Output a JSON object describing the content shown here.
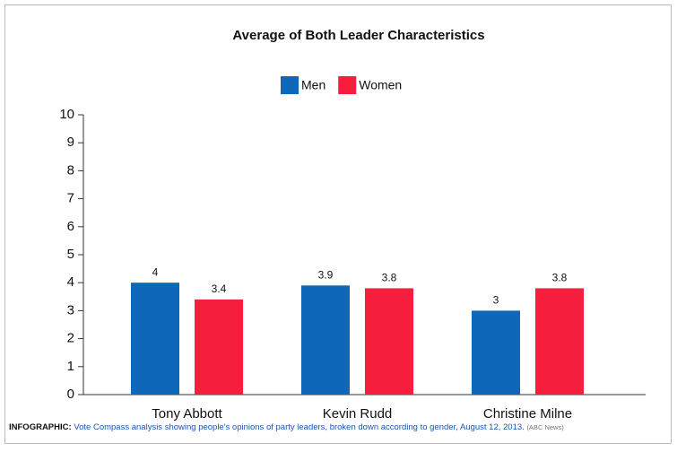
{
  "chart_data": {
    "type": "bar",
    "title": "Average of Both Leader Characteristics",
    "categories": [
      "Tony Abbott",
      "Kevin Rudd",
      "Christine Milne"
    ],
    "series": [
      {
        "name": "Men",
        "color": "#0f67b9",
        "values": [
          4,
          3.9,
          3
        ]
      },
      {
        "name": "Women",
        "color": "#f51f3d",
        "values": [
          3.4,
          3.8,
          3.8
        ]
      }
    ],
    "ylim": [
      0,
      10
    ],
    "yticks": [
      0,
      1,
      2,
      3,
      4,
      5,
      6,
      7,
      8,
      9,
      10
    ],
    "grid": false,
    "legend": "top"
  },
  "caption": {
    "label": "INFOGRAPHIC:",
    "text": "Vote Compass analysis showing people's opinions of party leaders, broken down according to gender, August 12, 2013.",
    "source": "(ABC News)"
  }
}
